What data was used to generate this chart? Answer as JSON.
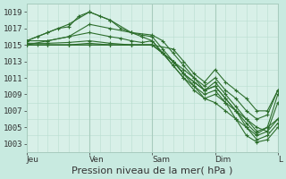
{
  "bg_color": "#c8eae0",
  "plot_bg_color": "#d8f0e8",
  "grid_color_major": "#a8ccbe",
  "grid_color_minor": "#b8ddd0",
  "line_color": "#2d6e2d",
  "ylim": [
    1002,
    1020
  ],
  "yticks": [
    1003,
    1005,
    1007,
    1009,
    1011,
    1013,
    1015,
    1017,
    1019
  ],
  "xlabel": "Pression niveau de la mer( hPa )",
  "xlabel_fontsize": 8,
  "tick_fontsize": 6.5,
  "day_labels": [
    "Jeu",
    "Ven",
    "Sam",
    "Dim",
    "L"
  ],
  "day_positions": [
    0,
    24,
    48,
    72,
    96
  ],
  "total_hours": 96,
  "lines": [
    [
      0,
      1015.5,
      4,
      1016,
      8,
      1016.5,
      12,
      1017,
      16,
      1017.2,
      20,
      1018.5,
      24,
      1019,
      28,
      1018.5,
      32,
      1018,
      36,
      1017,
      40,
      1016.5,
      44,
      1016,
      48,
      1015.5,
      52,
      1014,
      56,
      1012.5,
      60,
      1011,
      64,
      1009.5,
      68,
      1008.5,
      72,
      1009,
      76,
      1008,
      80,
      1007,
      84,
      1006,
      88,
      1005,
      92,
      1004.5,
      96,
      1008
    ],
    [
      0,
      1015.5,
      8,
      1016.5,
      16,
      1017.5,
      24,
      1019,
      32,
      1018,
      40,
      1016.5,
      44,
      1016.2,
      48,
      1016,
      52,
      1014.5,
      56,
      1013,
      60,
      1011.5,
      64,
      1010,
      68,
      1008.5,
      72,
      1008,
      76,
      1007,
      80,
      1006,
      84,
      1005,
      88,
      1004,
      92,
      1004.5,
      96,
      1006
    ],
    [
      0,
      1015.5,
      8,
      1015.5,
      16,
      1016,
      24,
      1016.5,
      32,
      1016,
      36,
      1015.8,
      40,
      1015.5,
      44,
      1015.3,
      48,
      1015.5,
      52,
      1014,
      56,
      1012.5,
      60,
      1011,
      64,
      1010,
      68,
      1009,
      72,
      1009.5,
      76,
      1008,
      80,
      1006,
      84,
      1004,
      88,
      1003.2,
      92,
      1003.5,
      96,
      1005
    ],
    [
      0,
      1015.2,
      8,
      1015.2,
      16,
      1015.3,
      24,
      1015.5,
      32,
      1015.2,
      40,
      1015,
      48,
      1015,
      52,
      1014,
      56,
      1013,
      60,
      1011.5,
      64,
      1010.5,
      68,
      1009.5,
      72,
      1010,
      76,
      1008.5,
      80,
      1007,
      84,
      1005,
      88,
      1003.5,
      92,
      1004,
      96,
      1005.5
    ],
    [
      0,
      1015,
      8,
      1015,
      16,
      1015,
      24,
      1015.2,
      32,
      1015,
      40,
      1015,
      48,
      1015,
      52,
      1014,
      56,
      1013,
      60,
      1011.5,
      64,
      1010.5,
      68,
      1009.5,
      72,
      1010.5,
      76,
      1009,
      80,
      1007.5,
      84,
      1006,
      88,
      1004.5,
      92,
      1005,
      96,
      1006
    ],
    [
      0,
      1015,
      8,
      1015,
      16,
      1015,
      24,
      1015,
      32,
      1015,
      40,
      1015,
      48,
      1015,
      52,
      1014,
      56,
      1013,
      60,
      1012,
      64,
      1011,
      68,
      1010,
      72,
      1011,
      76,
      1009.5,
      80,
      1008.5,
      84,
      1007,
      88,
      1006,
      92,
      1006.5,
      96,
      1009.5
    ],
    [
      0,
      1015,
      4,
      1015,
      8,
      1015,
      16,
      1015,
      24,
      1015,
      32,
      1015,
      40,
      1015,
      48,
      1015,
      56,
      1014.5,
      60,
      1013,
      64,
      1011.5,
      68,
      1010.5,
      72,
      1012,
      76,
      1010.5,
      80,
      1009.5,
      84,
      1008.5,
      88,
      1007,
      92,
      1007,
      96,
      1009.5
    ],
    [
      0,
      1015,
      8,
      1015.5,
      16,
      1016,
      24,
      1017.5,
      32,
      1017,
      40,
      1016.5,
      48,
      1016.2,
      52,
      1015.5,
      56,
      1014,
      60,
      1012.5,
      64,
      1011,
      68,
      1009.5,
      72,
      1010,
      76,
      1008.5,
      80,
      1007,
      84,
      1005.5,
      88,
      1004.2,
      92,
      1005,
      96,
      1009
    ]
  ]
}
